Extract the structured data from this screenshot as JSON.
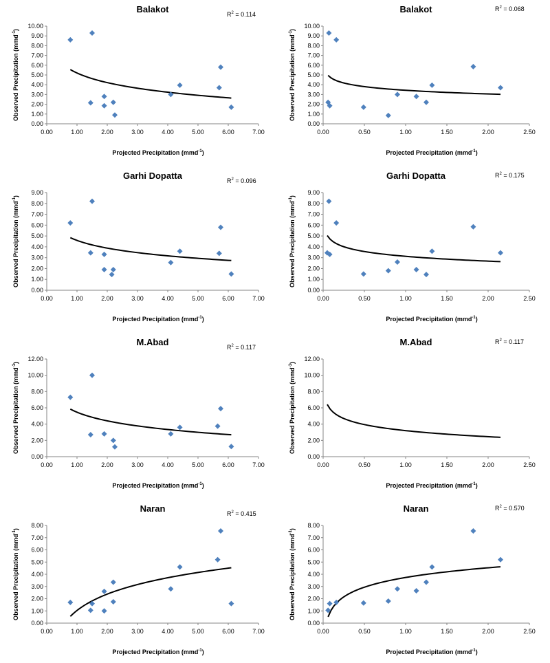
{
  "colors": {
    "point": "#4f81bd",
    "trend": "#000000",
    "axis": "#868686"
  },
  "chart_data": [
    {
      "type": "scatter",
      "title": "Balakot",
      "r2_label": "R",
      "r2_sup": "2",
      "r2_value": " = 0.114",
      "xlabel_main": "Projected Precipitation (mmd",
      "xlabel_sup": "-1",
      "xlabel_end": ")",
      "ylabel_main": "Observed Precipitation (mmd",
      "ylabel_sup": "-1",
      "ylabel_end": ")",
      "xlim": [
        0,
        7
      ],
      "xstep": 1,
      "ylim": [
        0,
        10
      ],
      "ystep": 1,
      "trend": "log",
      "points": [
        [
          0.78,
          8.6
        ],
        [
          1.5,
          9.3
        ],
        [
          1.45,
          2.15
        ],
        [
          1.9,
          2.8
        ],
        [
          1.9,
          1.85
        ],
        [
          2.2,
          2.2
        ],
        [
          2.25,
          0.9
        ],
        [
          4.1,
          3.0
        ],
        [
          4.4,
          3.95
        ],
        [
          5.7,
          3.7
        ],
        [
          5.75,
          5.8
        ],
        [
          6.1,
          1.7
        ]
      ]
    },
    {
      "type": "scatter",
      "title": "Balakot",
      "r2_label": "R",
      "r2_sup": "2",
      "r2_value": " = 0.068",
      "xlabel_main": "Projected Precipitation (mmd",
      "xlabel_sup": "-1",
      "xlabel_end": ")",
      "ylabel_main": "Observed Precipitation (mmd",
      "ylabel_sup": "-1",
      "ylabel_end": ")",
      "xlim": [
        0,
        2.5
      ],
      "xstep": 0.5,
      "ylim": [
        0,
        10
      ],
      "ystep": 1,
      "trend": "log",
      "points": [
        [
          0.07,
          9.3
        ],
        [
          0.16,
          8.6
        ],
        [
          0.06,
          2.2
        ],
        [
          0.08,
          1.85
        ],
        [
          0.49,
          1.7
        ],
        [
          0.79,
          0.85
        ],
        [
          0.9,
          3.0
        ],
        [
          1.13,
          2.8
        ],
        [
          1.25,
          2.2
        ],
        [
          1.32,
          3.95
        ],
        [
          1.82,
          5.85
        ],
        [
          2.15,
          3.7
        ]
      ]
    },
    {
      "type": "scatter",
      "title": "Garhi Dopatta",
      "r2_label": "R",
      "r2_sup": "2",
      "r2_value": " = 0.096",
      "xlabel_main": "Projected Precipitation (mmd",
      "xlabel_sup": "-1",
      "xlabel_end": ")",
      "ylabel_main": "Observed Precipitation (mmd",
      "ylabel_sup": "-1",
      "ylabel_end": ")",
      "xlim": [
        0,
        7
      ],
      "xstep": 1,
      "ylim": [
        0,
        9
      ],
      "ystep": 1,
      "trend": "log",
      "points": [
        [
          0.78,
          6.2
        ],
        [
          1.5,
          8.2
        ],
        [
          1.45,
          3.45
        ],
        [
          1.9,
          3.3
        ],
        [
          1.9,
          1.9
        ],
        [
          2.2,
          1.9
        ],
        [
          2.15,
          1.45
        ],
        [
          4.1,
          2.55
        ],
        [
          4.4,
          3.6
        ],
        [
          5.7,
          3.4
        ],
        [
          5.75,
          5.8
        ],
        [
          6.1,
          1.5
        ]
      ]
    },
    {
      "type": "scatter",
      "title": "Garhi Dopatta",
      "r2_label": "R",
      "r2_sup": "2",
      "r2_value": " = 0.175",
      "xlabel_main": "Projected Precipitation (mmd",
      "xlabel_sup": "-1",
      "xlabel_end": ")",
      "ylabel_main": "Observed Precipitation (mmd",
      "ylabel_sup": "-1",
      "ylabel_end": ")",
      "xlim": [
        0,
        2.5
      ],
      "xstep": 0.5,
      "ylim": [
        0,
        9
      ],
      "ystep": 1,
      "trend": "log",
      "points": [
        [
          0.07,
          8.2
        ],
        [
          0.16,
          6.2
        ],
        [
          0.05,
          3.45
        ],
        [
          0.08,
          3.3
        ],
        [
          0.49,
          1.5
        ],
        [
          0.79,
          1.8
        ],
        [
          0.9,
          2.6
        ],
        [
          1.13,
          1.9
        ],
        [
          1.25,
          1.45
        ],
        [
          1.32,
          3.6
        ],
        [
          1.82,
          5.85
        ],
        [
          2.15,
          3.45
        ]
      ]
    },
    {
      "type": "scatter",
      "title": "M.Abad",
      "r2_label": "R",
      "r2_sup": "2",
      "r2_value": " = 0.117",
      "xlabel_main": "Projected Precipitation (mmd",
      "xlabel_sup": "-1",
      "xlabel_end": ")",
      "ylabel_main": "Observed Precipitation (mmd",
      "ylabel_sup": "-1",
      "ylabel_end": ")",
      "xlim": [
        0,
        7
      ],
      "xstep": 1,
      "ylim": [
        0,
        12
      ],
      "ystep": 2,
      "trend": "log",
      "points": [
        [
          0.78,
          7.3
        ],
        [
          1.5,
          10.0
        ],
        [
          1.45,
          2.7
        ],
        [
          1.9,
          2.8
        ],
        [
          2.2,
          2.0
        ],
        [
          2.25,
          1.2
        ],
        [
          4.1,
          2.8
        ],
        [
          4.4,
          3.6
        ],
        [
          5.65,
          3.75
        ],
        [
          5.75,
          5.9
        ],
        [
          6.1,
          1.25
        ]
      ]
    },
    {
      "type": "scatter",
      "title": "M.Abad",
      "r2_label": "R",
      "r2_sup": "2",
      "r2_value": " = 0.117",
      "xlabel_main": "Projected Precipitation (mmd",
      "xlabel_sup": "-1",
      "xlabel_end": ")",
      "ylabel_main": "Observed Precipitation (mmd",
      "ylabel_sup": "-1",
      "ylabel_end": ")",
      "xlim": [
        0,
        2.5
      ],
      "xstep": 0.5,
      "ylim": [
        0,
        12
      ],
      "ystep": 2,
      "trend": "log",
      "points": []
    },
    {
      "type": "scatter",
      "title": "Naran",
      "r2_label": "R",
      "r2_sup": "2",
      "r2_value": " = 0.415",
      "xlabel_main": "Projected Precipitation (mmd",
      "xlabel_sup": "-1",
      "xlabel_end": ")",
      "ylabel_main": "Observed Precipitation (mmd",
      "ylabel_sup": "-1",
      "ylabel_end": ")",
      "xlim": [
        0,
        7
      ],
      "xstep": 1,
      "ylim": [
        0,
        8
      ],
      "ystep": 1,
      "trend": "log",
      "points": [
        [
          0.78,
          1.7
        ],
        [
          1.45,
          1.05
        ],
        [
          1.5,
          1.6
        ],
        [
          1.9,
          2.6
        ],
        [
          1.9,
          1.0
        ],
        [
          2.2,
          3.35
        ],
        [
          2.2,
          1.75
        ],
        [
          4.1,
          2.8
        ],
        [
          4.4,
          4.6
        ],
        [
          5.65,
          5.2
        ],
        [
          5.75,
          7.55
        ],
        [
          6.1,
          1.6
        ]
      ]
    },
    {
      "type": "scatter",
      "title": "Naran",
      "r2_label": "R",
      "r2_sup": "2",
      "r2_value": " = 0.570",
      "xlabel_main": "Projected Precipitation (mmd",
      "xlabel_sup": "-1",
      "xlabel_end": ")",
      "ylabel_main": "Observed Precipitation (mmd",
      "ylabel_sup": "-1",
      "ylabel_end": ")",
      "xlim": [
        0,
        2.5
      ],
      "xstep": 0.5,
      "ylim": [
        0,
        8
      ],
      "ystep": 1,
      "trend": "log",
      "points": [
        [
          0.06,
          1.05
        ],
        [
          0.08,
          1.6
        ],
        [
          0.16,
          1.7
        ],
        [
          0.49,
          1.65
        ],
        [
          0.79,
          1.8
        ],
        [
          0.9,
          2.8
        ],
        [
          1.13,
          2.65
        ],
        [
          1.25,
          3.35
        ],
        [
          1.32,
          4.6
        ],
        [
          1.82,
          7.55
        ],
        [
          2.15,
          5.2
        ]
      ]
    }
  ]
}
